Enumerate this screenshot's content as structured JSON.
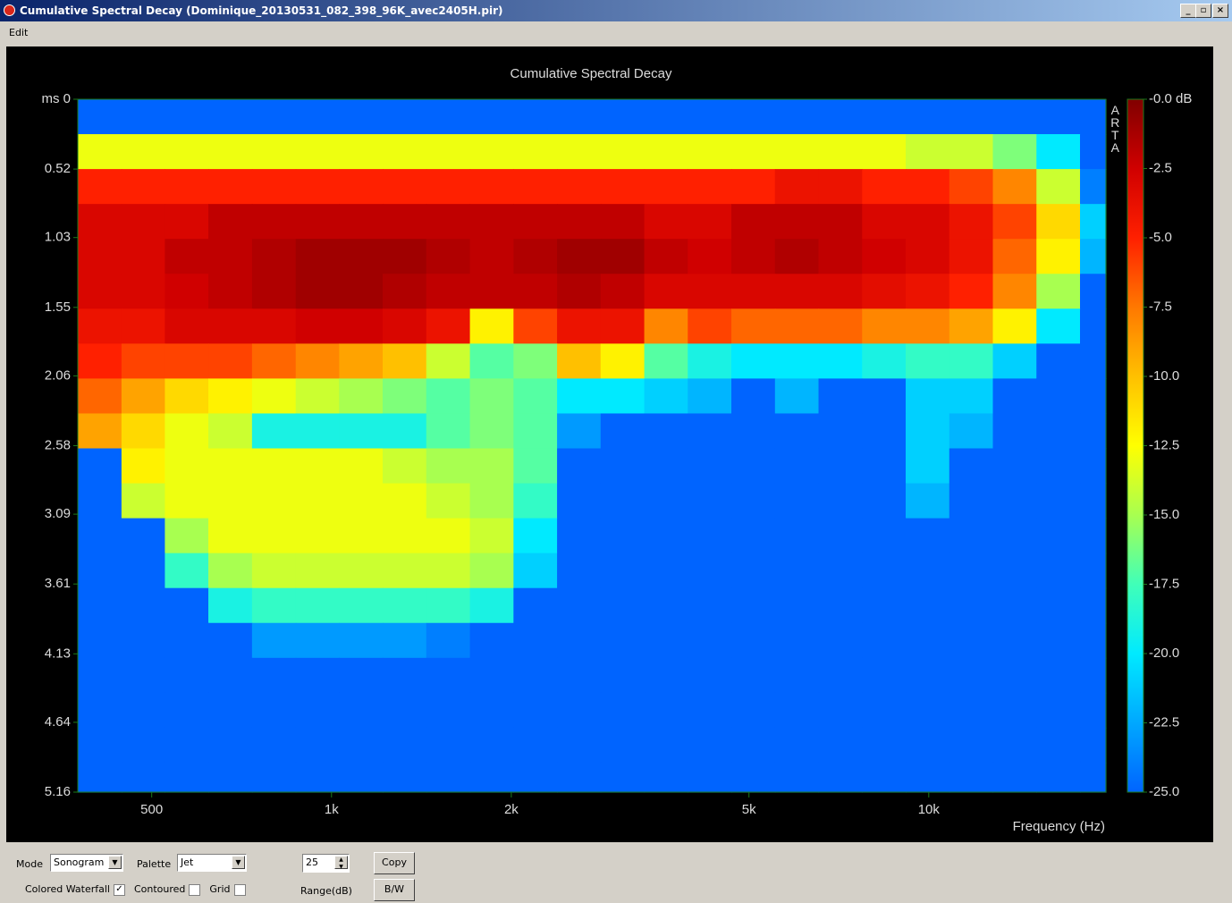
{
  "window_title": "Cumulative Spectral Decay  (Dominique_20130531_082_398_96K_avec2405H.pir)",
  "menu": [
    "Edit"
  ],
  "chart_data": {
    "type": "heatmap",
    "title": "Cumulative Spectral Decay",
    "x_label": "Frequency (Hz)",
    "watermark": "ARTA",
    "x_log": true,
    "xlim": [
      376,
      19800
    ],
    "xticks": [
      {
        "value": 500,
        "label": "500"
      },
      {
        "value": 1000,
        "label": "1k"
      },
      {
        "value": 2000,
        "label": "2k"
      },
      {
        "value": 5000,
        "label": "5k"
      },
      {
        "value": 10000,
        "label": "10k"
      }
    ],
    "ylim": [
      0,
      5.16
    ],
    "yticks": [
      {
        "value": 0,
        "label": "ms 0"
      },
      0.52,
      1.03,
      1.55,
      2.06,
      2.58,
      3.09,
      3.61,
      4.13,
      4.64,
      5.16
    ],
    "x": [
      376,
      445,
      526,
      622,
      736,
      871,
      1030,
      1218,
      1441,
      1705,
      2017,
      2386,
      2822,
      3339,
      3949,
      4672,
      5527,
      6538,
      7734,
      9149,
      10823,
      12803,
      15146,
      17917
    ],
    "y": [
      0,
      0.26,
      0.52,
      0.78,
      1.04,
      1.3,
      1.56,
      1.82,
      2.08,
      2.34,
      2.6,
      2.86,
      3.12,
      3.38,
      3.64,
      3.9,
      4.16,
      4.42,
      4.68,
      4.94
    ],
    "z": [
      [
        -25,
        -25,
        -25,
        -25,
        -25,
        -25,
        -25,
        -25,
        -25,
        -25,
        -25,
        -25,
        -25,
        -25,
        -25,
        -25,
        -25,
        -25,
        -25,
        -25,
        -25,
        -25,
        -25,
        -25
      ],
      [
        -13,
        -13,
        -13,
        -13,
        -13,
        -13,
        -13,
        -13,
        -13,
        -13,
        -13,
        -13,
        -13,
        -13,
        -13,
        -13,
        -13,
        -13,
        -13,
        -14,
        -14,
        -16,
        -20,
        -25
      ],
      [
        -5,
        -5,
        -5,
        -5,
        -5,
        -5,
        -5,
        -5,
        -5,
        -5,
        -5,
        -5,
        -5,
        -5,
        -5,
        -5,
        -4,
        -4,
        -5,
        -5,
        -6,
        -8,
        -14,
        -24
      ],
      [
        -3,
        -3,
        -3,
        -2,
        -2,
        -2,
        -2,
        -2,
        -2,
        -2,
        -2,
        -2,
        -2,
        -3,
        -3,
        -2,
        -2,
        -2,
        -3,
        -3,
        -4,
        -6,
        -11,
        -21
      ],
      [
        -3,
        -3,
        -2,
        -2,
        -1.5,
        -1,
        -1,
        -1,
        -1.5,
        -2,
        -1.5,
        -1,
        -1,
        -2,
        -2.5,
        -2,
        -1.5,
        -2,
        -2.5,
        -3,
        -4,
        -7,
        -12,
        -22
      ],
      [
        -3,
        -3,
        -2.5,
        -2,
        -1.5,
        -1,
        -1,
        -1.5,
        -2,
        -2,
        -2,
        -1.5,
        -2,
        -3,
        -3,
        -3,
        -3,
        -3,
        -3.5,
        -4,
        -5,
        -8,
        -15,
        -25
      ],
      [
        -4,
        -4,
        -3,
        -3,
        -3,
        -2.5,
        -2.5,
        -3,
        -4,
        -12,
        -6,
        -4,
        -4,
        -8,
        -6,
        -7,
        -7,
        -7,
        -8,
        -8,
        -9,
        -12,
        -20,
        -25
      ],
      [
        -5,
        -6,
        -6,
        -6,
        -7,
        -8,
        -9,
        -10,
        -14,
        -17,
        -16,
        -10,
        -12,
        -17,
        -19,
        -20,
        -20,
        -20,
        -19,
        -18,
        -18,
        -21,
        -25,
        -25
      ],
      [
        -7,
        -9,
        -11,
        -12,
        -13,
        -14,
        -15,
        -16,
        -17,
        -16,
        -17,
        -20,
        -20,
        -21,
        -22,
        -25,
        -22,
        -25,
        -25,
        -21,
        -21,
        -25,
        -25,
        -25
      ],
      [
        -9,
        -11,
        -13,
        -14,
        -19,
        -19,
        -19,
        -19,
        -17,
        -16,
        -17,
        -23,
        -25,
        -25,
        -25,
        -25,
        -25,
        -25,
        -25,
        -21,
        -22,
        -25,
        -25,
        -25
      ],
      [
        -25,
        -12,
        -13,
        -13,
        -13,
        -13,
        -13,
        -14,
        -15,
        -15,
        -17,
        -25,
        -25,
        -25,
        -25,
        -25,
        -25,
        -25,
        -25,
        -21,
        -25,
        -25,
        -25,
        -25
      ],
      [
        -25,
        -14,
        -13,
        -13,
        -13,
        -13,
        -13,
        -13,
        -14,
        -15,
        -18,
        -25,
        -25,
        -25,
        -25,
        -25,
        -25,
        -25,
        -25,
        -22,
        -25,
        -25,
        -25,
        -25
      ],
      [
        -25,
        -25,
        -15,
        -13,
        -13,
        -13,
        -13,
        -13,
        -13,
        -14,
        -20,
        -25,
        -25,
        -25,
        -25,
        -25,
        -25,
        -25,
        -25,
        -25,
        -25,
        -25,
        -25,
        -25
      ],
      [
        -25,
        -25,
        -18,
        -15,
        -14,
        -14,
        -14,
        -14,
        -14,
        -15,
        -21,
        -25,
        -25,
        -25,
        -25,
        -25,
        -25,
        -25,
        -25,
        -25,
        -25,
        -25,
        -25,
        -25
      ],
      [
        -25,
        -25,
        -25,
        -19,
        -18,
        -18,
        -18,
        -18,
        -18,
        -19,
        -25,
        -25,
        -25,
        -25,
        -25,
        -25,
        -25,
        -25,
        -25,
        -25,
        -25,
        -25,
        -25,
        -25
      ],
      [
        -25,
        -25,
        -25,
        -25,
        -23,
        -23,
        -23,
        -23,
        -24,
        -25,
        -25,
        -25,
        -25,
        -25,
        -25,
        -25,
        -25,
        -25,
        -25,
        -25,
        -25,
        -25,
        -25,
        -25
      ],
      [
        -25,
        -25,
        -25,
        -25,
        -25,
        -25,
        -25,
        -25,
        -25,
        -25,
        -25,
        -25,
        -25,
        -25,
        -25,
        -25,
        -25,
        -25,
        -25,
        -25,
        -25,
        -25,
        -25,
        -25
      ],
      [
        -25,
        -25,
        -25,
        -25,
        -25,
        -25,
        -25,
        -25,
        -25,
        -25,
        -25,
        -25,
        -25,
        -25,
        -25,
        -25,
        -25,
        -25,
        -25,
        -25,
        -25,
        -25,
        -25,
        -25
      ],
      [
        -25,
        -25,
        -25,
        -25,
        -25,
        -25,
        -25,
        -25,
        -25,
        -25,
        -25,
        -25,
        -25,
        -25,
        -25,
        -25,
        -25,
        -25,
        -25,
        -25,
        -25,
        -25,
        -25,
        -25
      ],
      [
        -25,
        -25,
        -25,
        -25,
        -25,
        -25,
        -25,
        -25,
        -25,
        -25,
        -25,
        -25,
        -25,
        -25,
        -25,
        -25,
        -25,
        -25,
        -25,
        -25,
        -25,
        -25,
        -25,
        -25
      ]
    ],
    "colorbar": {
      "lim": [
        -25,
        0
      ],
      "ticks": [
        {
          "value": 0,
          "label": "-0.0 dB"
        },
        -2.5,
        {
          "value": -5,
          "label": "-5.0"
        },
        -7.5,
        {
          "value": -10,
          "label": "-10.0"
        },
        -12.5,
        {
          "value": -15,
          "label": "-15.0"
        },
        -17.5,
        {
          "value": -20,
          "label": "-20.0"
        },
        -22.5,
        {
          "value": -25,
          "label": "-25.0"
        }
      ],
      "colors": [
        "#0064ff",
        "#00a8ff",
        "#00eaff",
        "#40ffb8",
        "#a8ff50",
        "#ffff00",
        "#ffc000",
        "#ff7800",
        "#ff2000",
        "#d00000",
        "#800000"
      ]
    }
  },
  "controls": {
    "mode_label": "Mode",
    "mode": "Sonogram",
    "palette_label": "Palette",
    "palette": "Jet",
    "range": 25,
    "range_label": "Range(dB)",
    "copy": "Copy",
    "bw": "B/W",
    "checks": [
      {
        "label": "Colored Waterfall",
        "checked": true
      },
      {
        "label": "Contoured",
        "checked": false
      },
      {
        "label": "Grid",
        "checked": false
      }
    ]
  }
}
